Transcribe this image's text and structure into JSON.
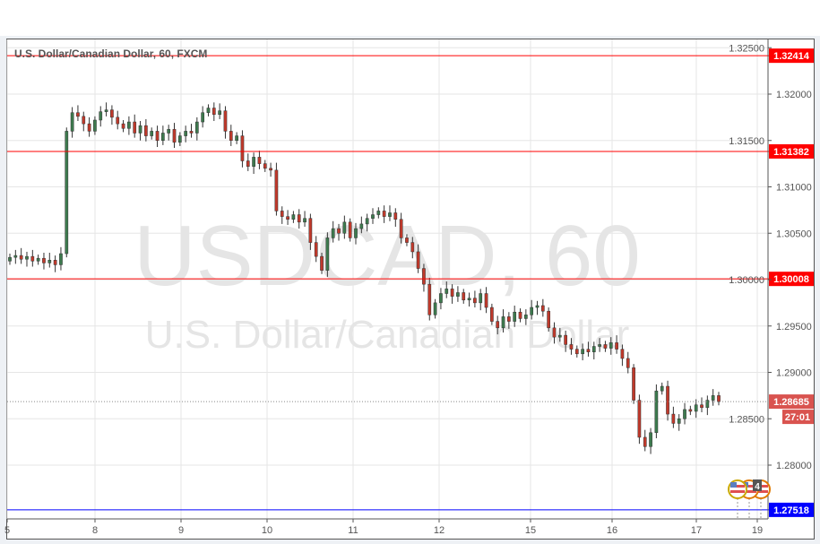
{
  "chart_data": {
    "type": "candlestick",
    "title": "U.S. Dollar/Canadian Dollar, 60, FXCM",
    "watermark": {
      "symbol": "USDCAD, 60",
      "description": "U.S. Dollar/Canadian Dollar"
    },
    "x_tick_labels": [
      "5",
      "8",
      "9",
      "10",
      "11",
      "12",
      "15",
      "16",
      "17",
      "19"
    ],
    "y_tick_labels": [
      "1.32500",
      "1.32000",
      "1.31500",
      "1.31000",
      "1.30500",
      "1.30000",
      "1.29500",
      "1.29000",
      "1.28500",
      "1.28000"
    ],
    "y_ticks": [
      1.325,
      1.32,
      1.315,
      1.31,
      1.305,
      1.3,
      1.295,
      1.29,
      1.285,
      1.28
    ],
    "ylim": [
      1.2745,
      1.3262
    ],
    "grid": true,
    "closes": [
      1.3024,
      1.3026,
      1.3022,
      1.3025,
      1.302,
      1.3023,
      1.3018,
      1.3021,
      1.3016,
      1.3028,
      1.316,
      1.318,
      1.3176,
      1.3168,
      1.316,
      1.3172,
      1.3181,
      1.3183,
      1.3175,
      1.3168,
      1.3163,
      1.317,
      1.3158,
      1.3166,
      1.3155,
      1.316,
      1.315,
      1.3158,
      1.3162,
      1.3148,
      1.3155,
      1.316,
      1.3158,
      1.317,
      1.318,
      1.3185,
      1.3178,
      1.3182,
      1.316,
      1.315,
      1.3155,
      1.3128,
      1.3122,
      1.3132,
      1.3125,
      1.312,
      1.3118,
      1.3074,
      1.3068,
      1.3065,
      1.307,
      1.3062,
      1.3066,
      1.304,
      1.3025,
      1.301,
      1.3045,
      1.3055,
      1.305,
      1.3062,
      1.3045,
      1.3055,
      1.306,
      1.3066,
      1.307,
      1.3074,
      1.3068,
      1.3072,
      1.3065,
      1.3045,
      1.304,
      1.303,
      1.3012,
      1.2995,
      1.2962,
      1.2975,
      1.2985,
      1.299,
      1.2982,
      1.2986,
      1.2978,
      1.298,
      1.2975,
      1.2985,
      1.297,
      1.2955,
      1.2948,
      1.296,
      1.2955,
      1.2965,
      1.2958,
      1.2962,
      1.297,
      1.2972,
      1.2966,
      1.2948,
      1.2938,
      1.294,
      1.293,
      1.2925,
      1.292,
      1.2925,
      1.2922,
      1.2928,
      1.293,
      1.2926,
      1.2932,
      1.2925,
      1.2915,
      1.2905,
      1.287,
      1.283,
      1.282,
      1.2835,
      1.288,
      1.2885,
      1.2855,
      1.2845,
      1.285,
      1.286,
      1.2858,
      1.2865,
      1.2862,
      1.287,
      1.2875,
      1.28685
    ],
    "open_first": 1.302,
    "horizontal_lines": [
      {
        "value": 1.32414,
        "label": "1.32414",
        "color": "#ff0000"
      },
      {
        "value": 1.31382,
        "label": "1.31382",
        "color": "#ff0000"
      },
      {
        "value": 1.30008,
        "label": "1.30008",
        "color": "#ff0000"
      },
      {
        "value": 1.27518,
        "label": "1.27518",
        "color": "#0000ff"
      }
    ],
    "last_price": {
      "value": 1.28685,
      "label": "1.28685",
      "countdown": "27:01",
      "color": "#d9534f"
    },
    "up_color": "#3d7a4e",
    "down_color": "#c0392b",
    "events": {
      "icon": "us-flag-icon",
      "count": "4"
    }
  }
}
